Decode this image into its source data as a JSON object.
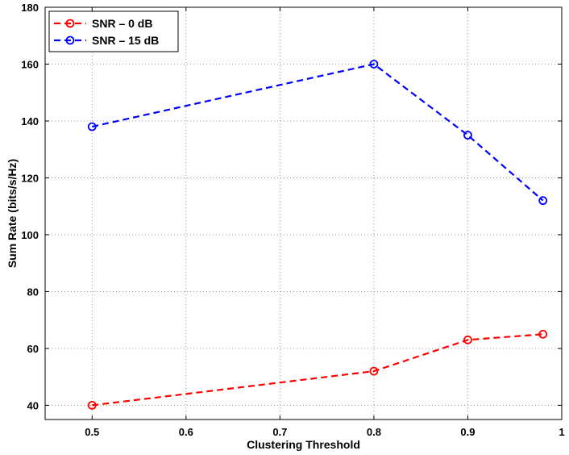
{
  "chart_data": {
    "type": "line",
    "title": "",
    "xlabel": "Clustering Threshold",
    "ylabel": "Sum Rate (bits/s/Hz)",
    "xlim": [
      0.45,
      1.0
    ],
    "ylim": [
      35,
      180
    ],
    "xticks": [
      0.5,
      0.6,
      0.7,
      0.8,
      0.9,
      1.0
    ],
    "xtick_labels": [
      "0.5",
      "0.6",
      "0.7",
      "0.8",
      "0.9",
      "1"
    ],
    "yticks": [
      40,
      60,
      80,
      100,
      120,
      140,
      160,
      180
    ],
    "ytick_labels": [
      "40",
      "60",
      "80",
      "100",
      "120",
      "140",
      "160",
      "180"
    ],
    "grid": true,
    "legend_position": "top-left",
    "series": [
      {
        "name": "SNR – 0 dB",
        "color": "#ff0000",
        "x": [
          0.5,
          0.8,
          0.9,
          0.98
        ],
        "y": [
          40,
          52,
          63,
          65
        ]
      },
      {
        "name": "SNR – 15 dB",
        "color": "#0000ff",
        "x": [
          0.5,
          0.8,
          0.9,
          0.98
        ],
        "y": [
          138,
          160,
          135,
          112
        ]
      }
    ]
  }
}
